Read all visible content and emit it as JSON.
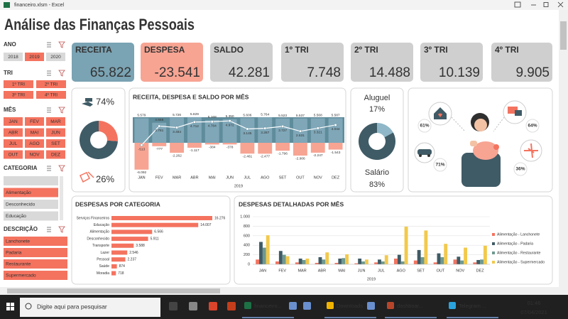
{
  "window": {
    "title": "financeiro.xlsm - Excel"
  },
  "title": "Análise das Finanças Pessoais",
  "slicers": [
    {
      "label": "ANO",
      "items": [
        {
          "text": "2018",
          "selected": false
        },
        {
          "text": "2019",
          "selected": true
        },
        {
          "text": "2020",
          "selected": false
        }
      ]
    },
    {
      "label": "TRI",
      "items": [
        {
          "text": "1º TRI",
          "selected": true
        },
        {
          "text": "2º TRI",
          "selected": true
        },
        {
          "text": "3º TRI",
          "selected": true
        },
        {
          "text": "4º TRI",
          "selected": true
        }
      ]
    },
    {
      "label": "MÊS",
      "items": [
        {
          "text": "JAN",
          "selected": true
        },
        {
          "text": "FEV",
          "selected": true
        },
        {
          "text": "MAR",
          "selected": true
        },
        {
          "text": "ABR",
          "selected": true
        },
        {
          "text": "MAI",
          "selected": true
        },
        {
          "text": "JUN",
          "selected": true
        },
        {
          "text": "JUL",
          "selected": true
        },
        {
          "text": "AGO",
          "selected": true
        },
        {
          "text": "SET",
          "selected": true
        },
        {
          "text": "OUT",
          "selected": true
        },
        {
          "text": "NOV",
          "selected": true
        },
        {
          "text": "DEZ",
          "selected": true
        }
      ]
    },
    {
      "label": "CATEGORIA",
      "items": [
        {
          "text": null,
          "selected": false
        },
        {
          "text": "Alimentação",
          "selected": true
        },
        {
          "text": "Desconhecido",
          "selected": false
        },
        {
          "text": "Educação",
          "selected": false
        }
      ]
    },
    {
      "label": "DESCRIÇÃO",
      "items": [
        {
          "text": "Lanchonete",
          "selected": true
        },
        {
          "text": "Padaria",
          "selected": true
        },
        {
          "text": "Restaurante",
          "selected": true
        },
        {
          "text": "Supermercado",
          "selected": true
        }
      ]
    }
  ],
  "kpis": [
    {
      "label": "RECEITA",
      "value": "65.822",
      "color": "#7aa3b3"
    },
    {
      "label": "DESPESA",
      "value": "-23.541",
      "color": "#f7a493"
    },
    {
      "label": "SALDO",
      "value": "42.281",
      "color": "#cfcfcf"
    },
    {
      "label": "1º TRI",
      "value": "7.748",
      "color": "#cfcfcf"
    },
    {
      "label": "2º TRI",
      "value": "14.488",
      "color": "#cfcfcf"
    },
    {
      "label": "3º TRI",
      "value": "10.139",
      "color": "#cfcfcf"
    },
    {
      "label": "4º TRI",
      "value": "9.905",
      "color": "#cfcfcf"
    }
  ],
  "chart_data": [
    {
      "type": "pie",
      "values": [
        74,
        26
      ],
      "value_labels": [
        "74%",
        "26%"
      ],
      "colors": [
        "#3f5b66",
        "#f4735f"
      ]
    },
    {
      "type": "combo",
      "title": "RECEITA, DESPESA E SALDO POR MÊS",
      "x_label": "2019",
      "categories": [
        "JAN",
        "FEV",
        "MAR",
        "ABR",
        "MAI",
        "JUN",
        "JUL",
        "AGO",
        "SET",
        "OUT",
        "NOV",
        "DEZ"
      ],
      "series": [
        {
          "type": "bar",
          "color": "#7fa7b8",
          "values": [
            5579,
            4558,
            5726,
            5829,
            5168,
            5350,
            5606,
            5764,
            5523,
            5537,
            5568,
            5587
          ],
          "value_labels": [
            "5.579",
            "4.558",
            "5.726",
            "5.829",
            "5.168",
            "5.350",
            "5.606",
            "5.764",
            "5.523",
            "5.537",
            "5.568",
            "5.587"
          ]
        },
        {
          "type": "bar",
          "color": "#f7a493",
          "values": [
            -6092,
            -777,
            -2262,
            -1117,
            -384,
            -378,
            -2461,
            -2477,
            -1796,
            -2906,
            -2247,
            -1543
          ],
          "value_labels": [
            "-6.092",
            "-777",
            "-2.262",
            "-1.117",
            "-384",
            "-378",
            "-2.461",
            "-2.477",
            "-1.796",
            "-2.906",
            "-2.247",
            "-1.543"
          ]
        },
        {
          "type": "line",
          "color": "#ffffff",
          "values": [
            -513,
            3781,
            3464,
            4712,
            4784,
            4972,
            3145,
            3287,
            3727,
            2631,
            3321,
            4044
          ],
          "value_labels": [
            "-513",
            "3.781",
            "3.464",
            "4.712",
            "4.784",
            "4.972",
            "3.145",
            "3.287",
            "3.727",
            "2.631",
            "3.321",
            "4.044"
          ]
        }
      ]
    },
    {
      "type": "pie",
      "categories": [
        "Aluguel",
        "Salário"
      ],
      "values": [
        17,
        83
      ],
      "value_labels": [
        "17%",
        "83%"
      ],
      "colors": [
        "#8fb7c7",
        "#3f5b66"
      ]
    },
    {
      "type": "barh",
      "title": "DESPESAS POR CATEGORIA",
      "color": "#f4735f",
      "categories": [
        "Serviços Financeiros",
        "Educação",
        "Alimentação",
        "Desconhecido",
        "Transporte",
        "Lazer",
        "Pessoal",
        "Saúde",
        "Moradia"
      ],
      "values": [
        16276,
        14007,
        6566,
        5911,
        3588,
        2546,
        2237,
        874,
        718
      ],
      "value_labels": [
        "16.276",
        "14.007",
        "6.566",
        "5.911",
        "3.588",
        "2.546",
        "2.237",
        "874",
        "718"
      ]
    },
    {
      "type": "bar",
      "title": "DESPESAS DETALHADAS POR MÊS",
      "x_label": "2019",
      "categories": [
        "JAN",
        "FEV",
        "MAR",
        "ABR",
        "MAI",
        "JUN",
        "JUL",
        "AGO",
        "SET",
        "OUT",
        "NOV",
        "DEZ"
      ],
      "ylim": [
        0,
        1000
      ],
      "yticks": [
        0,
        200,
        400,
        600,
        800,
        {
          "value": 1000,
          "label": "1.000"
        }
      ],
      "grid": true,
      "legend": "right",
      "series": [
        {
          "name": "Alimentação - Lanchonete",
          "color": "#f4735f",
          "values": [
            100,
            60,
            40,
            30,
            30,
            20,
            40,
            120,
            80,
            40,
            100,
            40
          ]
        },
        {
          "name": "Alimentação - Padaria",
          "color": "#3f5b66",
          "values": [
            470,
            280,
            120,
            150,
            120,
            120,
            100,
            200,
            300,
            230,
            160,
            90
          ]
        },
        {
          "name": "Alimentação - Restaurante",
          "color": "#6e9a8f",
          "values": [
            350,
            200,
            90,
            100,
            130,
            60,
            60,
            60,
            150,
            150,
            80,
            100
          ]
        },
        {
          "name": "Alimentação - Supermercado",
          "color": "#f2c94c",
          "values": [
            610,
            170,
            120,
            250,
            210,
            100,
            190,
            790,
            710,
            430,
            350,
            390
          ]
        }
      ]
    }
  ],
  "illustration": {
    "labels": [
      "61%",
      "64%",
      "71%",
      "36%"
    ]
  },
  "taskbar": {
    "search": "Digite aqui para pesquisar",
    "apps": [
      "financeiro...",
      "Downloads",
      "dashboar...",
      "Telegram ..."
    ],
    "time": "01:46",
    "date": "07/04/2021"
  }
}
